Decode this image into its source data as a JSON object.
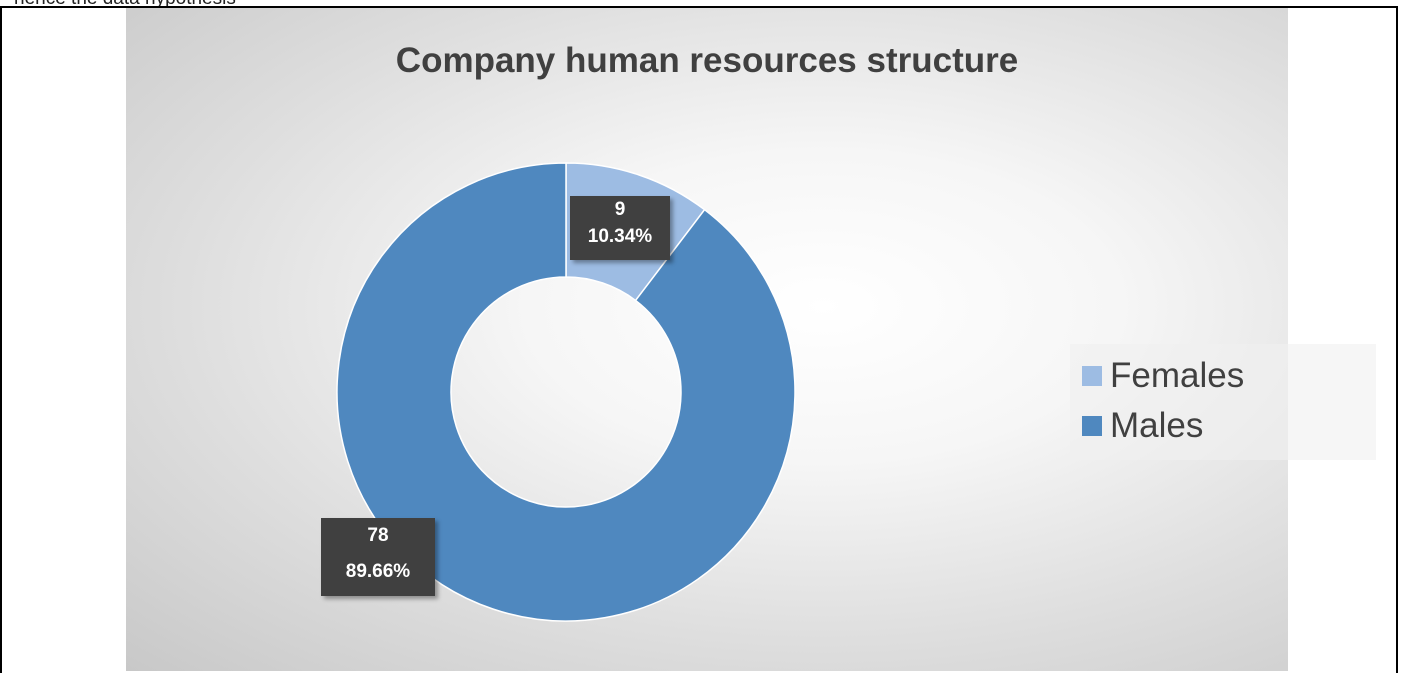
{
  "header_fragment": "hence the data hypothesis",
  "chart_data": {
    "type": "pie",
    "variant": "doughnut",
    "title": "Company human resources structure",
    "categories": [
      "Females",
      "Males"
    ],
    "values": [
      9,
      78
    ],
    "percent_labels": [
      "10.34%",
      "89.66%"
    ],
    "value_labels": [
      "9",
      "78"
    ],
    "colors": [
      "#9dbce3",
      "#4f88bf"
    ],
    "legend_position": "right",
    "start_angle_deg": 0,
    "direction": "clockwise"
  }
}
